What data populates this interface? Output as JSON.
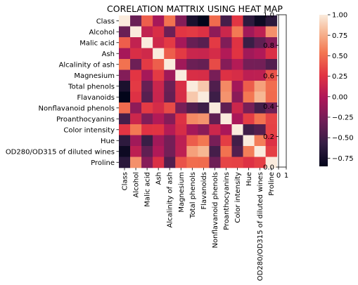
{
  "chart_data": {
    "type": "heatmap",
    "title": "CORELATION MATTRIX USING HEAT MAP",
    "labels": [
      "Class",
      "Alcohol",
      "Malic acid",
      "Ash",
      "Alcalinity of ash",
      "Magnesium",
      "Total phenols",
      "Flavanoids",
      "Nonflavanoid phenols",
      "Proanthocyanins",
      "Color intensity",
      "Hue",
      "OD280/OD315 of diluted wines",
      "Proline"
    ],
    "matrix": [
      [
        1.0,
        -0.33,
        0.44,
        -0.05,
        0.52,
        -0.21,
        -0.72,
        -0.85,
        0.49,
        -0.5,
        0.27,
        -0.62,
        -0.79,
        -0.63
      ],
      [
        -0.33,
        1.0,
        0.09,
        0.21,
        -0.31,
        0.27,
        0.29,
        0.24,
        -0.16,
        0.14,
        0.55,
        -0.07,
        0.07,
        0.64
      ],
      [
        0.44,
        0.09,
        1.0,
        0.16,
        0.29,
        -0.05,
        -0.34,
        -0.41,
        0.29,
        -0.22,
        0.25,
        -0.56,
        -0.37,
        -0.19
      ],
      [
        -0.05,
        0.21,
        0.16,
        1.0,
        0.44,
        0.29,
        0.13,
        0.12,
        0.19,
        0.01,
        0.26,
        -0.07,
        0.0,
        0.22
      ],
      [
        0.52,
        -0.31,
        0.29,
        0.44,
        1.0,
        -0.08,
        -0.32,
        -0.35,
        0.36,
        -0.2,
        0.02,
        -0.27,
        -0.28,
        -0.44
      ],
      [
        -0.21,
        0.27,
        -0.05,
        0.29,
        -0.08,
        1.0,
        0.21,
        0.2,
        -0.26,
        0.24,
        0.2,
        0.06,
        0.07,
        0.39
      ],
      [
        -0.72,
        0.29,
        -0.34,
        0.13,
        -0.32,
        0.21,
        1.0,
        0.86,
        -0.45,
        0.61,
        -0.06,
        0.43,
        0.7,
        0.5
      ],
      [
        -0.85,
        0.24,
        -0.41,
        0.12,
        -0.35,
        0.2,
        0.86,
        1.0,
        -0.54,
        0.65,
        -0.17,
        0.54,
        0.79,
        0.49
      ],
      [
        0.49,
        -0.16,
        0.29,
        0.19,
        0.36,
        -0.26,
        -0.45,
        -0.54,
        1.0,
        -0.37,
        0.14,
        -0.26,
        -0.5,
        -0.31
      ],
      [
        -0.5,
        0.14,
        -0.22,
        0.01,
        -0.2,
        0.24,
        0.61,
        0.65,
        -0.37,
        1.0,
        -0.03,
        0.3,
        0.52,
        0.33
      ],
      [
        0.27,
        0.55,
        0.25,
        0.26,
        0.02,
        0.2,
        -0.06,
        -0.17,
        0.14,
        -0.03,
        1.0,
        -0.52,
        -0.43,
        0.32
      ],
      [
        -0.62,
        -0.07,
        -0.56,
        -0.07,
        -0.27,
        0.06,
        0.43,
        0.54,
        -0.26,
        0.3,
        -0.52,
        1.0,
        0.57,
        0.24
      ],
      [
        -0.79,
        0.07,
        -0.37,
        0.0,
        -0.28,
        0.07,
        0.7,
        0.79,
        -0.5,
        0.52,
        -0.43,
        0.57,
        1.0,
        0.31
      ],
      [
        -0.63,
        0.64,
        -0.19,
        0.22,
        -0.44,
        0.39,
        0.5,
        0.49,
        -0.31,
        0.33,
        0.32,
        0.24,
        0.31,
        1.0
      ]
    ],
    "colorbar": {
      "range": [
        -0.85,
        1.0
      ],
      "ticks": [
        1.0,
        0.75,
        0.5,
        0.25,
        0.0,
        -0.25,
        -0.5,
        -0.75
      ],
      "tick_labels": [
        "1.00",
        "0.75",
        "0.50",
        "0.25",
        "0.00",
        "−0.25",
        "−0.50",
        "−0.75"
      ]
    },
    "secondary_axes": {
      "y_ticks": [
        "0.0",
        "0.2",
        "0.4",
        "0.6",
        "0.8",
        "1.0"
      ],
      "x_ticks": [
        "0",
        "1"
      ]
    },
    "colormap": "rocket",
    "grid": false
  }
}
